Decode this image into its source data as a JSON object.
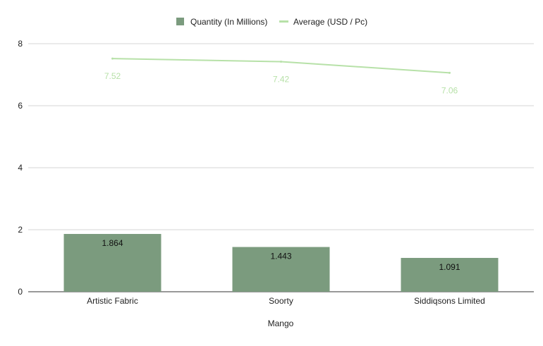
{
  "chart_data": {
    "type": "bar",
    "categories": [
      "Artistic Fabric",
      "Soorty",
      "Siddiqsons Limited"
    ],
    "xlabel": "Mango",
    "ylabel": "",
    "ylim": [
      0,
      8
    ],
    "yticks": [
      "0",
      "2",
      "4",
      "6",
      "8"
    ],
    "grid": true,
    "legend_position": "top-center",
    "series": [
      {
        "name": "Quantity (In Millions)",
        "kind": "bar",
        "color": "#7b9b7e",
        "values": [
          1.864,
          1.443,
          1.091
        ],
        "labels": [
          "1.864",
          "1.443",
          "1.091"
        ]
      },
      {
        "name": "Average (USD / Pc)",
        "kind": "line",
        "color": "#b7e1a8",
        "values": [
          7.52,
          7.42,
          7.06
        ],
        "labels": [
          "7.52",
          "7.42",
          "7.06"
        ]
      }
    ]
  }
}
